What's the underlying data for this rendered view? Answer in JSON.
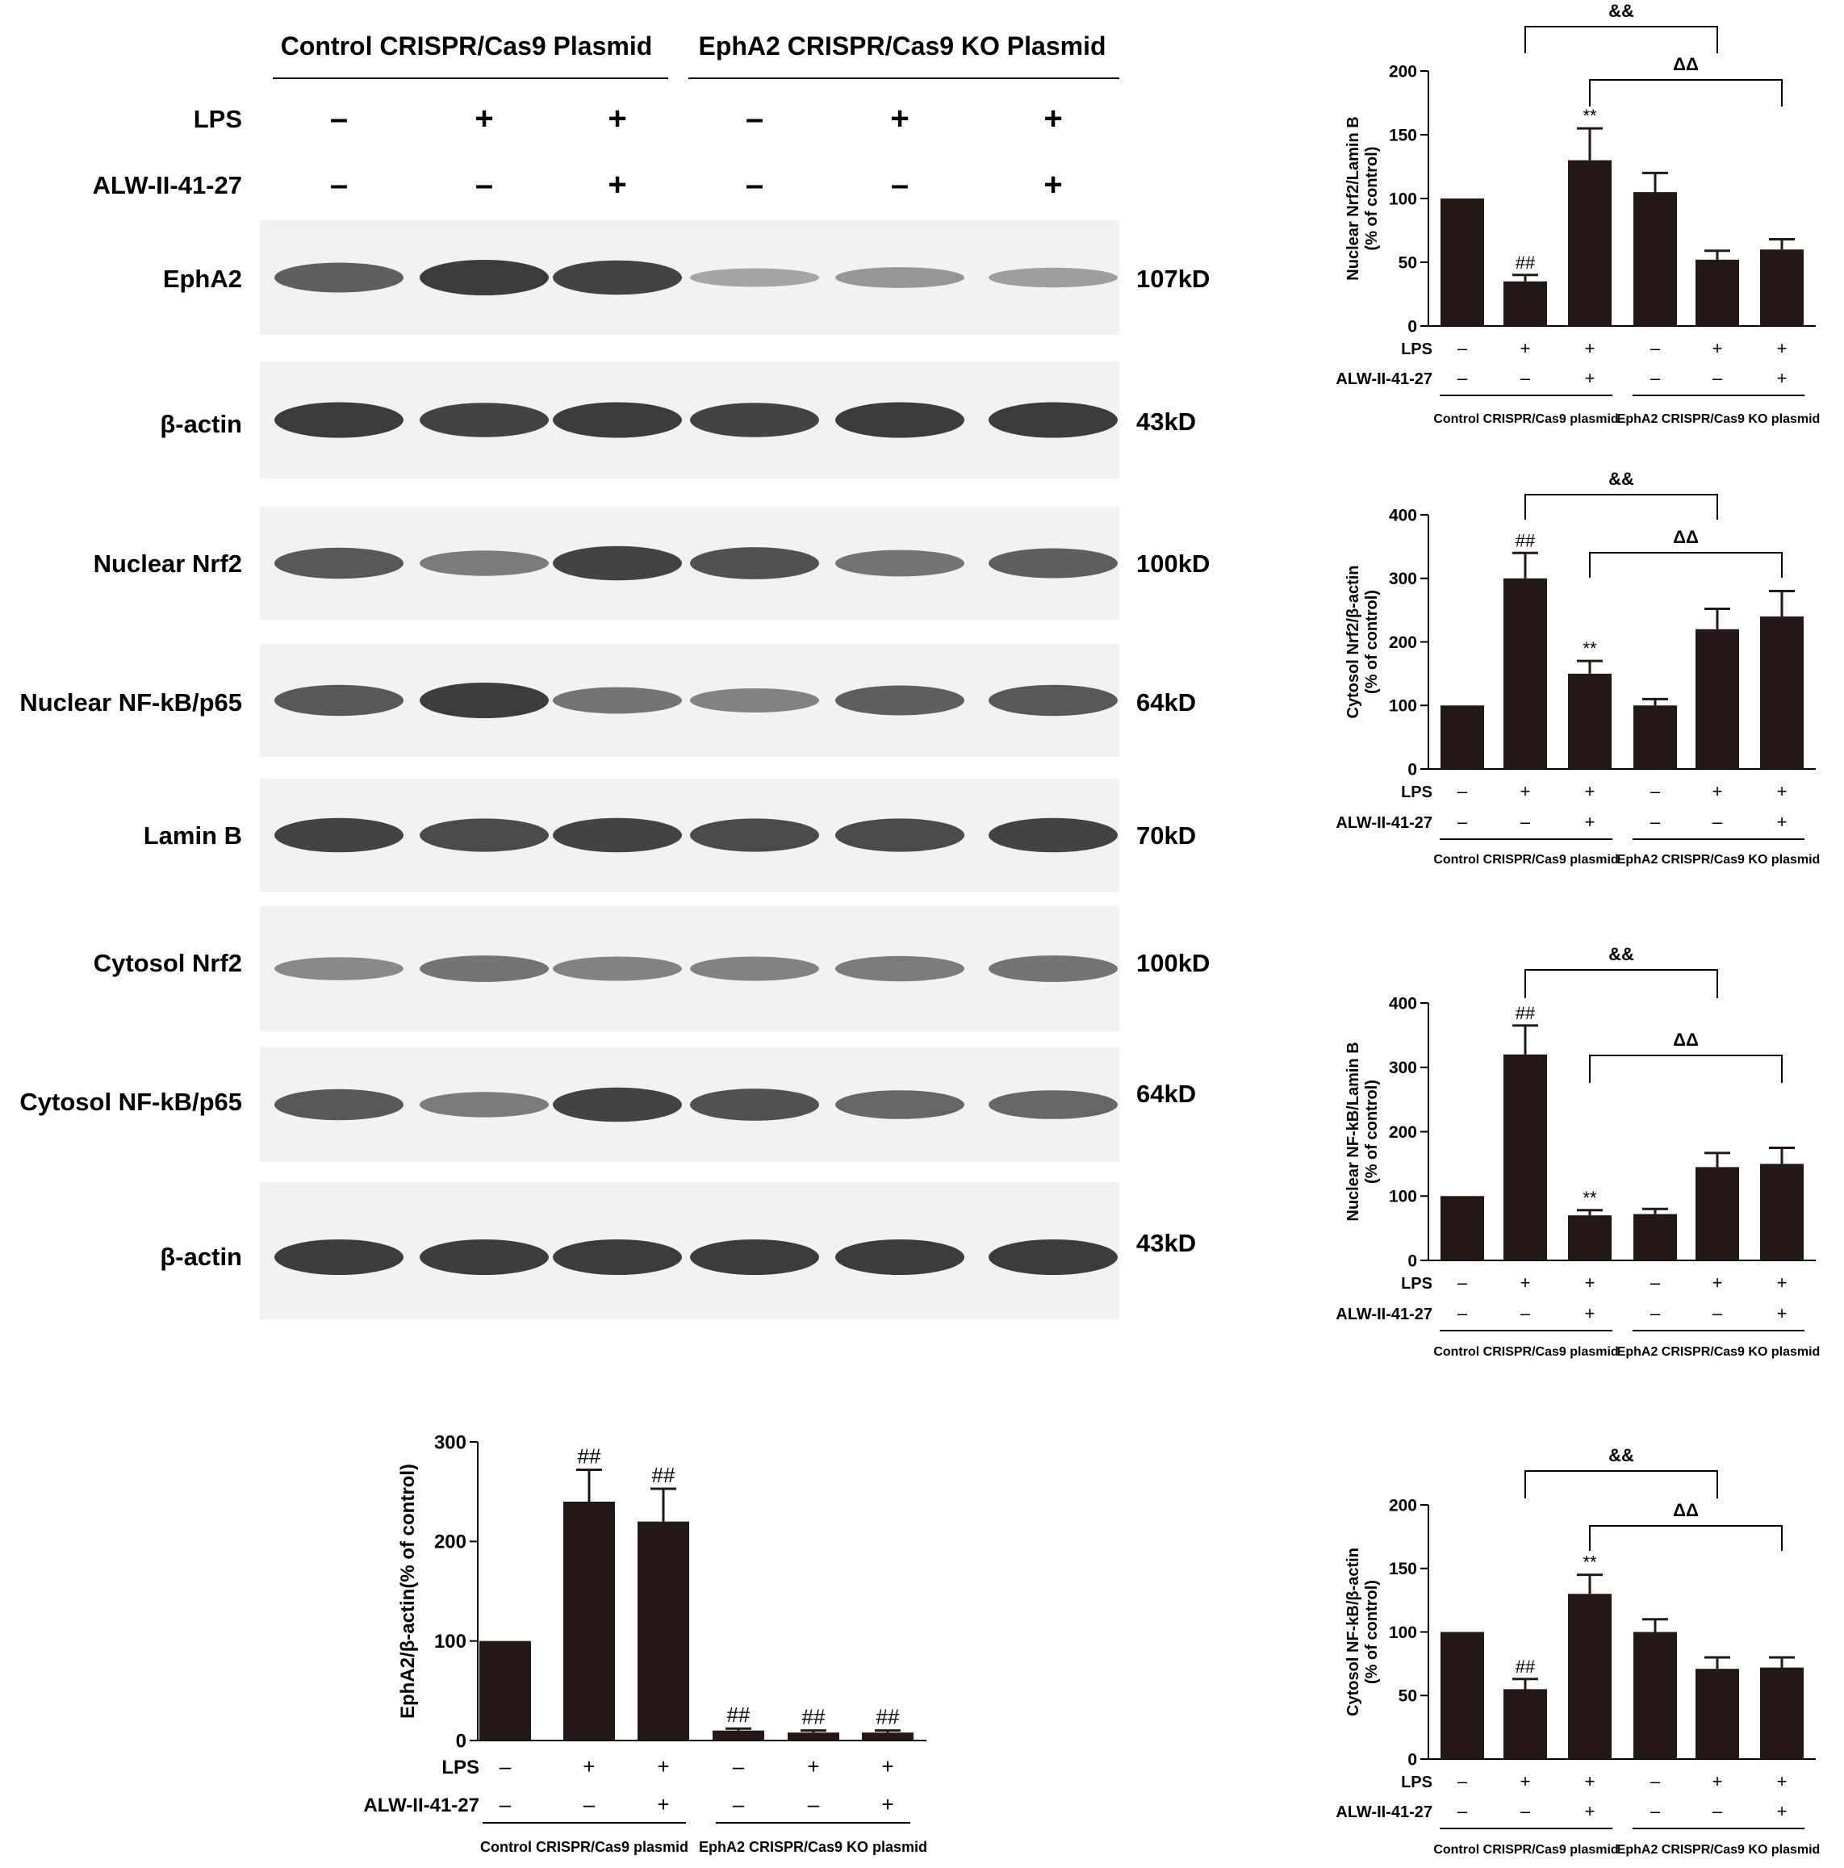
{
  "blot": {
    "groups": [
      "Control CRISPR/Cas9 Plasmid",
      "EphA2 CRISPR/Cas9 KO Plasmid"
    ],
    "lps_label": "LPS",
    "alw_label": "ALW-II-41-27",
    "lps_signs": [
      "–",
      "+",
      "+",
      "–",
      "+",
      "+"
    ],
    "alw_signs": [
      "–",
      "–",
      "+",
      "–",
      "–",
      "+"
    ],
    "bands": [
      {
        "name": "EphA2",
        "kd": "107kD",
        "intensity": [
          0.75,
          1.0,
          0.95,
          0.25,
          0.35,
          0.3
        ]
      },
      {
        "name": "β-actin",
        "kd": "43kD",
        "intensity": [
          1.0,
          0.95,
          1.0,
          0.95,
          1.0,
          1.0
        ]
      },
      {
        "name": "Nuclear Nrf2",
        "kd": "100kD",
        "intensity": [
          0.8,
          0.55,
          0.95,
          0.85,
          0.6,
          0.75
        ]
      },
      {
        "name": "Nuclear NF-kB/p65",
        "kd": "64kD",
        "intensity": [
          0.8,
          1.0,
          0.6,
          0.5,
          0.75,
          0.8
        ]
      },
      {
        "name": "Lamin B",
        "kd": "70kD",
        "intensity": [
          0.95,
          0.9,
          0.95,
          0.9,
          0.9,
          0.95
        ]
      },
      {
        "name": "Cytosol Nrf2",
        "kd": "100kD",
        "intensity": [
          0.45,
          0.6,
          0.5,
          0.5,
          0.55,
          0.6
        ]
      },
      {
        "name": "Cytosol NF-kB/p65",
        "kd": "64kD",
        "intensity": [
          0.8,
          0.55,
          0.95,
          0.85,
          0.7,
          0.7
        ]
      },
      {
        "name": "β-actin",
        "kd": "43kD",
        "intensity": [
          1.0,
          1.0,
          1.0,
          1.0,
          1.0,
          1.0
        ]
      }
    ]
  },
  "chart_labels": {
    "lps": "LPS",
    "alw": "ALW-II-41-27",
    "group1": "Control CRISPR/Cas9 plasmid",
    "group2": "EphA2 CRISPR/Cas9 KO plasmid",
    "lps_signs": [
      "–",
      "+",
      "+",
      "–",
      "+",
      "+"
    ],
    "alw_signs": [
      "–",
      "–",
      "+",
      "–",
      "–",
      "+"
    ]
  },
  "chart_data": [
    {
      "type": "bar",
      "ylabel": "Nuclear Nrf2/Lamin B\n(% of control)",
      "ylim": [
        0,
        200
      ],
      "yticks": [
        0,
        50,
        100,
        150,
        200
      ],
      "values": [
        100,
        35,
        130,
        105,
        52,
        60
      ],
      "errors": [
        0,
        5,
        25,
        15,
        7,
        8
      ],
      "annotations": [
        "",
        "##",
        "**",
        "",
        "",
        ""
      ],
      "brackets": [
        {
          "from": 1,
          "to": 4,
          "label": "&&"
        },
        {
          "from": 2,
          "to": 5,
          "label": "ΔΔ"
        }
      ]
    },
    {
      "type": "bar",
      "ylabel": "Cytosol Nrf2/β-actin\n(% of control)",
      "ylim": [
        0,
        400
      ],
      "yticks": [
        0,
        100,
        200,
        300,
        400
      ],
      "values": [
        100,
        300,
        150,
        100,
        220,
        240
      ],
      "errors": [
        0,
        40,
        20,
        10,
        32,
        40
      ],
      "annotations": [
        "",
        "##",
        "**",
        "",
        "",
        ""
      ],
      "brackets": [
        {
          "from": 1,
          "to": 4,
          "label": "&&"
        },
        {
          "from": 2,
          "to": 5,
          "label": "ΔΔ"
        }
      ]
    },
    {
      "type": "bar",
      "ylabel": "Nuclear NF-kB/Lamin B\n(% of control)",
      "ylim": [
        0,
        400
      ],
      "yticks": [
        0,
        100,
        200,
        300,
        400
      ],
      "values": [
        100,
        320,
        70,
        72,
        145,
        150
      ],
      "errors": [
        0,
        45,
        8,
        8,
        22,
        25
      ],
      "annotations": [
        "",
        "##",
        "**",
        "",
        "",
        ""
      ],
      "brackets": [
        {
          "from": 1,
          "to": 4,
          "label": "&&"
        },
        {
          "from": 2,
          "to": 5,
          "label": "ΔΔ"
        }
      ]
    },
    {
      "type": "bar",
      "ylabel": "Cytosol NF-kB/β-actin\n(% of control)",
      "ylim": [
        0,
        200
      ],
      "yticks": [
        0,
        50,
        100,
        150,
        200
      ],
      "values": [
        100,
        55,
        130,
        100,
        71,
        72
      ],
      "errors": [
        0,
        8,
        15,
        10,
        9,
        8
      ],
      "annotations": [
        "",
        "##",
        "**",
        "",
        "",
        ""
      ],
      "brackets": [
        {
          "from": 1,
          "to": 4,
          "label": "&&"
        },
        {
          "from": 2,
          "to": 5,
          "label": "ΔΔ"
        }
      ]
    },
    {
      "type": "bar",
      "ylabel": "EphA2/β-actin(% of control)",
      "ylim": [
        0,
        300
      ],
      "yticks": [
        0,
        100,
        200,
        300
      ],
      "values": [
        100,
        240,
        220,
        10,
        8,
        8
      ],
      "errors": [
        0,
        32,
        33,
        2,
        2,
        2
      ],
      "annotations": [
        "",
        "##",
        "##",
        "##",
        "##",
        "##"
      ],
      "brackets": []
    }
  ]
}
